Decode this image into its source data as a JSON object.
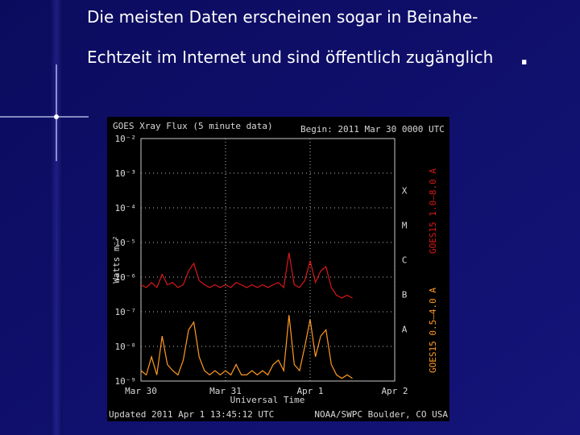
{
  "slide": {
    "title_line1": "Die meisten Daten erscheinen sogar in Beinahe-",
    "title_line2": "Echtzeit im Internet und sind öffentlich zugänglich",
    "title_period": "."
  },
  "chart_data": {
    "type": "line",
    "title": "GOES Xray Flux (5 minute data)",
    "subtitle": "Begin: 2011 Mar 30 0000 UTC",
    "y_label": "Watts m⁻²",
    "x_label": "Universal Time",
    "footer_left": "Updated 2011 Apr 1 13:45:12 UTC",
    "footer_right": "NOAA/SWPC Boulder, CO USA",
    "flare_classes": [
      "X",
      "M",
      "C",
      "B",
      "A"
    ],
    "log_y": true,
    "grid": true,
    "x": [
      0,
      1.5,
      3,
      4.5,
      6,
      7.5,
      9,
      10.5,
      12,
      13.5,
      15,
      16.5,
      18,
      19.5,
      21,
      22.5,
      24,
      25.5,
      27,
      28.5,
      30,
      31.5,
      33,
      34.5,
      36,
      37.5,
      39,
      40.5,
      42,
      43.5,
      45,
      46.5,
      48,
      49.5,
      51,
      52.5,
      54,
      55.5,
      57,
      58.5,
      60
    ],
    "xlim": [
      0,
      72
    ],
    "xticks": [
      {
        "value": 0,
        "label": "Mar 30"
      },
      {
        "value": 24,
        "label": "Mar 31"
      },
      {
        "value": 48,
        "label": "Apr 1"
      },
      {
        "value": 72,
        "label": "Apr 2"
      }
    ],
    "ylim": [
      1e-09,
      0.01
    ],
    "yticks": [
      {
        "value": 1e-09,
        "label": "10⁻⁹"
      },
      {
        "value": 1e-08,
        "label": "10⁻⁸"
      },
      {
        "value": 1e-07,
        "label": "10⁻⁷"
      },
      {
        "value": 1e-06,
        "label": "10⁻⁶"
      },
      {
        "value": 1e-05,
        "label": "10⁻⁵"
      },
      {
        "value": 0.0001,
        "label": "10⁻⁴"
      },
      {
        "value": 0.001,
        "label": "10⁻³"
      },
      {
        "value": 0.01,
        "label": "10⁻²"
      }
    ],
    "series": [
      {
        "name": "GOES15 1.0–8.0 A",
        "color": "#d81818",
        "values": [
          6e-07,
          5e-07,
          7e-07,
          5e-07,
          1.2e-06,
          6e-07,
          7e-07,
          5e-07,
          6e-07,
          1.5e-06,
          2.5e-06,
          8e-07,
          6e-07,
          5e-07,
          6e-07,
          5e-07,
          6e-07,
          5e-07,
          7e-07,
          6e-07,
          5e-07,
          6e-07,
          5e-07,
          6e-07,
          5e-07,
          6e-07,
          7e-07,
          5e-07,
          5e-06,
          6e-07,
          5e-07,
          8e-07,
          3e-06,
          7e-07,
          1.5e-06,
          2e-06,
          5e-07,
          3e-07,
          2.5e-07,
          3e-07,
          2.5e-07
        ]
      },
      {
        "name": "GOES15 0.5–4.0 A",
        "color": "#ff9a24",
        "values": [
          2e-09,
          1.5e-09,
          5e-09,
          1.5e-09,
          2e-08,
          3e-09,
          2e-09,
          1.5e-09,
          4e-09,
          3e-08,
          5e-08,
          5e-09,
          2e-09,
          1.5e-09,
          2e-09,
          1.5e-09,
          2e-09,
          1.5e-09,
          3e-09,
          1.5e-09,
          1.5e-09,
          2e-09,
          1.5e-09,
          2e-09,
          1.5e-09,
          3e-09,
          4e-09,
          2e-09,
          8e-08,
          3e-09,
          2e-09,
          1e-08,
          6e-08,
          5e-09,
          2e-08,
          3e-08,
          3e-09,
          1.5e-09,
          1.2e-09,
          1.5e-09,
          1.2e-09
        ]
      }
    ]
  }
}
